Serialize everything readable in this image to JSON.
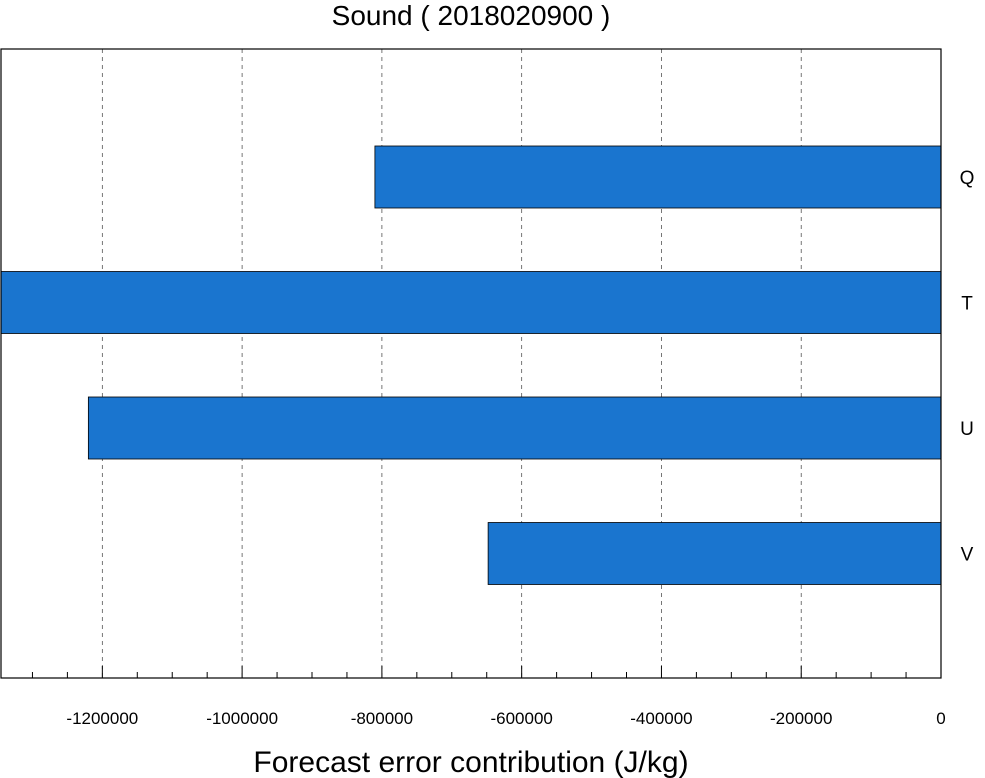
{
  "chart_data": {
    "type": "bar",
    "orientation": "horizontal",
    "title": "Sound ( 2018020900 )",
    "xlabel": "Forecast error contribution (J/kg)",
    "ylabel": "",
    "categories": [
      "Q",
      "T",
      "U",
      "V"
    ],
    "values": [
      -810000,
      -1345000,
      -1220000,
      -648000
    ],
    "xlim": [
      -1345000,
      0
    ],
    "xticks": [
      -1200000,
      -1000000,
      -800000,
      -600000,
      -400000,
      -200000,
      0
    ],
    "xtick_labels": [
      "-1200000",
      "-1000000",
      "-800000",
      "-600000",
      "-400000",
      "-200000",
      "0"
    ],
    "minor_tick_step": 50000,
    "grid": "vertical dashed at major ticks",
    "category_label_side": "right",
    "legend": "none",
    "bar_color": "#1a75cf"
  }
}
